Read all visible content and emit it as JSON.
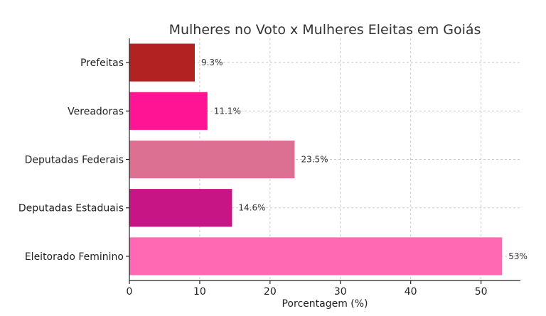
{
  "chart_data": {
    "type": "bar",
    "orientation": "horizontal",
    "title": "Mulheres no Voto x Mulheres Eleitas em Goiás",
    "xlabel": "Porcentagem (%)",
    "ylabel": "",
    "categories": [
      "Eleitorado Feminino",
      "Deputadas Estaduais",
      "Deputadas Federais",
      "Vereadoras",
      "Prefeitas"
    ],
    "values": [
      53,
      14.6,
      23.5,
      11.1,
      9.3
    ],
    "value_labels": [
      "53%",
      "14.6%",
      "23.5%",
      "11.1%",
      "9.3%"
    ],
    "colors": [
      "#ff69b4",
      "#c71585",
      "#db7093",
      "#ff1493",
      "#b22222"
    ],
    "xlim": [
      0,
      55.6
    ],
    "xticks": [
      0,
      10,
      20,
      30,
      40,
      50
    ],
    "grid": true
  }
}
